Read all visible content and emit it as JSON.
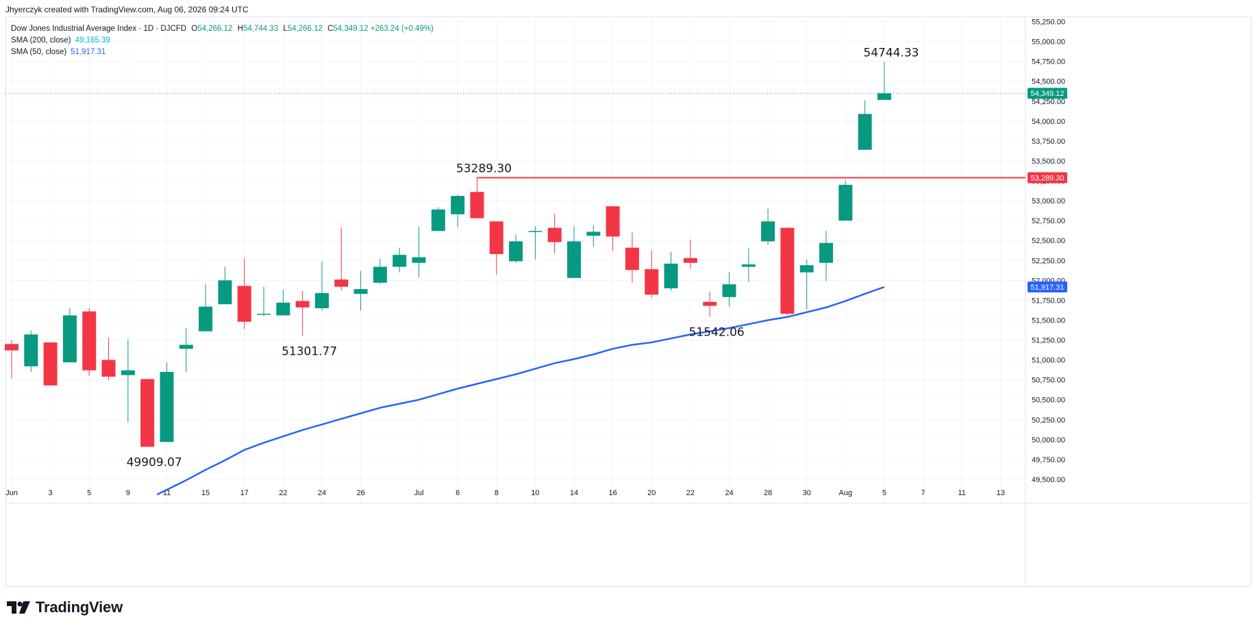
{
  "header": {
    "credit": "Jhyerczyk created with TradingView.com, Aug 06, 2026 09:24 UTC"
  },
  "legend": {
    "title": "Dow Jones Industrial Average Index · 1D · DJCFD",
    "open_key": "O",
    "open": "54,266.12",
    "high_key": "H",
    "high": "54,744.33",
    "low_key": "L",
    "low": "54,266.12",
    "close_key": "C",
    "close": "54,349.12",
    "change": "+263.24 (+0.49%)",
    "sma200_label": "SMA (200, close)",
    "sma200_value": "49,165.39",
    "sma50_label": "SMA (50, close)",
    "sma50_value": "51,917.31"
  },
  "footer": {
    "brand": "TradingView"
  },
  "colors": {
    "up": "#089981",
    "down": "#f23645",
    "sma50": "#2962ff",
    "resistance": "#f23645",
    "grid": "#f0f3fa",
    "axis_text": "#131722",
    "current_price_dotted": "#089981"
  },
  "chart_data": {
    "type": "candlestick",
    "title": "Dow Jones Industrial Average Index · 1D · DJCFD",
    "ylim": [
      49400,
      55350
    ],
    "y_ticks": [
      49500,
      49750,
      50000,
      50250,
      50500,
      50750,
      51000,
      51250,
      51500,
      51750,
      52000,
      52250,
      52500,
      52750,
      53000,
      53250,
      53500,
      53750,
      54000,
      54250,
      54500,
      54750,
      55000,
      55250
    ],
    "y_tick_labels": [
      "49,500.00",
      "49,750.00",
      "50,000.00",
      "50,250.00",
      "50,500.00",
      "50,750.00",
      "51,000.00",
      "51,250.00",
      "51,500.00",
      "51,750.00",
      "52,000.00",
      "52,250.00",
      "52,500.00",
      "52,750.00",
      "53,000.00",
      "53,250.00",
      "53,500.00",
      "53,750.00",
      "54,000.00",
      "54,250.00",
      "54,500.00",
      "54,750.00",
      "55,000.00",
      "55,250.00"
    ],
    "x_ticks": [
      {
        "i": 0,
        "label": "Jun"
      },
      {
        "i": 2,
        "label": "3"
      },
      {
        "i": 4,
        "label": "5"
      },
      {
        "i": 6,
        "label": "9"
      },
      {
        "i": 8,
        "label": "11"
      },
      {
        "i": 10,
        "label": "15"
      },
      {
        "i": 12,
        "label": "17"
      },
      {
        "i": 14,
        "label": "22"
      },
      {
        "i": 16,
        "label": "24"
      },
      {
        "i": 18,
        "label": "26"
      },
      {
        "i": 21,
        "label": "Jul"
      },
      {
        "i": 23,
        "label": "6"
      },
      {
        "i": 25,
        "label": "8"
      },
      {
        "i": 27,
        "label": "10"
      },
      {
        "i": 29,
        "label": "14"
      },
      {
        "i": 31,
        "label": "16"
      },
      {
        "i": 33,
        "label": "20"
      },
      {
        "i": 35,
        "label": "22"
      },
      {
        "i": 37,
        "label": "24"
      },
      {
        "i": 39,
        "label": "28"
      },
      {
        "i": 41,
        "label": "30"
      },
      {
        "i": 43,
        "label": "Aug"
      },
      {
        "i": 45,
        "label": "5"
      },
      {
        "i": 47,
        "label": "7"
      },
      {
        "i": 49,
        "label": "11"
      },
      {
        "i": 51,
        "label": "13"
      }
    ],
    "candles": [
      {
        "i": 0,
        "o": 51200,
        "h": 51250,
        "l": 50770,
        "c": 51120
      },
      {
        "i": 1,
        "o": 50920,
        "h": 51370,
        "l": 50850,
        "c": 51320
      },
      {
        "i": 2,
        "o": 51220,
        "h": 51220,
        "l": 50680,
        "c": 50680
      },
      {
        "i": 3,
        "o": 50970,
        "h": 51650,
        "l": 50970,
        "c": 51560
      },
      {
        "i": 4,
        "o": 51610,
        "h": 51650,
        "l": 50800,
        "c": 50870
      },
      {
        "i": 5,
        "o": 51000,
        "h": 51280,
        "l": 50750,
        "c": 50790
      },
      {
        "i": 6,
        "o": 50810,
        "h": 51260,
        "l": 50220,
        "c": 50870
      },
      {
        "i": 7,
        "o": 50760,
        "h": 50760,
        "l": 49909.07,
        "c": 49909.07
      },
      {
        "i": 8,
        "o": 49970,
        "h": 50970,
        "l": 49970,
        "c": 50850
      },
      {
        "i": 9,
        "o": 51140,
        "h": 51400,
        "l": 50850,
        "c": 51190
      },
      {
        "i": 10,
        "o": 51360,
        "h": 51950,
        "l": 51360,
        "c": 51670
      },
      {
        "i": 11,
        "o": 51700,
        "h": 52170,
        "l": 51700,
        "c": 52000
      },
      {
        "i": 12,
        "o": 51930,
        "h": 52280,
        "l": 51390,
        "c": 51480
      },
      {
        "i": 13,
        "o": 51570,
        "h": 51920,
        "l": 51550,
        "c": 51580
      },
      {
        "i": 14,
        "o": 51560,
        "h": 51880,
        "l": 51560,
        "c": 51720
      },
      {
        "i": 15,
        "o": 51740,
        "h": 51870,
        "l": 51301.77,
        "c": 51660
      },
      {
        "i": 16,
        "o": 51650,
        "h": 52240,
        "l": 51620,
        "c": 51840
      },
      {
        "i": 17,
        "o": 52010,
        "h": 52660,
        "l": 51870,
        "c": 51920
      },
      {
        "i": 18,
        "o": 51830,
        "h": 52120,
        "l": 51620,
        "c": 51890
      },
      {
        "i": 19,
        "o": 51970,
        "h": 52270,
        "l": 51950,
        "c": 52170
      },
      {
        "i": 20,
        "o": 52170,
        "h": 52410,
        "l": 52100,
        "c": 52320
      },
      {
        "i": 21,
        "o": 52220,
        "h": 52670,
        "l": 52040,
        "c": 52290
      },
      {
        "i": 22,
        "o": 52620,
        "h": 52920,
        "l": 52620,
        "c": 52890
      },
      {
        "i": 23,
        "o": 52830,
        "h": 53080,
        "l": 52670,
        "c": 53060
      },
      {
        "i": 24,
        "o": 53110,
        "h": 53289.3,
        "l": 52790,
        "c": 52780
      },
      {
        "i": 25,
        "o": 52740,
        "h": 52740,
        "l": 52070,
        "c": 52330
      },
      {
        "i": 26,
        "o": 52240,
        "h": 52570,
        "l": 52220,
        "c": 52490
      },
      {
        "i": 27,
        "o": 52610,
        "h": 52680,
        "l": 52260,
        "c": 52620
      },
      {
        "i": 28,
        "o": 52660,
        "h": 52840,
        "l": 52340,
        "c": 52480
      },
      {
        "i": 29,
        "o": 52030,
        "h": 52680,
        "l": 52030,
        "c": 52490
      },
      {
        "i": 30,
        "o": 52560,
        "h": 52690,
        "l": 52420,
        "c": 52610
      },
      {
        "i": 31,
        "o": 52930,
        "h": 52930,
        "l": 52370,
        "c": 52550
      },
      {
        "i": 32,
        "o": 52410,
        "h": 52600,
        "l": 51970,
        "c": 52130
      },
      {
        "i": 33,
        "o": 52140,
        "h": 52380,
        "l": 51780,
        "c": 51820
      },
      {
        "i": 34,
        "o": 51900,
        "h": 52360,
        "l": 51870,
        "c": 52210
      },
      {
        "i": 35,
        "o": 52280,
        "h": 52510,
        "l": 52150,
        "c": 52220
      },
      {
        "i": 36,
        "o": 51730,
        "h": 51860,
        "l": 51542.06,
        "c": 51680
      },
      {
        "i": 37,
        "o": 51790,
        "h": 52100,
        "l": 51670,
        "c": 51950
      },
      {
        "i": 38,
        "o": 52170,
        "h": 52400,
        "l": 51980,
        "c": 52200
      },
      {
        "i": 39,
        "o": 52490,
        "h": 52900,
        "l": 52450,
        "c": 52740
      },
      {
        "i": 40,
        "o": 52660,
        "h": 52660,
        "l": 51560,
        "c": 51580
      },
      {
        "i": 41,
        "o": 52100,
        "h": 52260,
        "l": 51630,
        "c": 52190
      },
      {
        "i": 42,
        "o": 52220,
        "h": 52620,
        "l": 51990,
        "c": 52470
      },
      {
        "i": 43,
        "o": 52750,
        "h": 53250,
        "l": 52750,
        "c": 53200
      },
      {
        "i": 44,
        "o": 53640,
        "h": 54260,
        "l": 53640,
        "c": 54090
      },
      {
        "i": 45,
        "o": 54266.12,
        "h": 54744.33,
        "l": 54266.12,
        "c": 54349.12
      }
    ],
    "sma50": {
      "name": "SMA (50, close)",
      "points": [
        {
          "i": 7.5,
          "v": 49310
        },
        {
          "i": 9,
          "v": 49490
        },
        {
          "i": 10,
          "v": 49620
        },
        {
          "i": 11,
          "v": 49740
        },
        {
          "i": 12,
          "v": 49870
        },
        {
          "i": 13,
          "v": 49960
        },
        {
          "i": 14,
          "v": 50040
        },
        {
          "i": 15,
          "v": 50120
        },
        {
          "i": 16,
          "v": 50190
        },
        {
          "i": 17,
          "v": 50260
        },
        {
          "i": 18,
          "v": 50330
        },
        {
          "i": 19,
          "v": 50400
        },
        {
          "i": 20,
          "v": 50450
        },
        {
          "i": 21,
          "v": 50500
        },
        {
          "i": 22,
          "v": 50570
        },
        {
          "i": 23,
          "v": 50640
        },
        {
          "i": 24,
          "v": 50700
        },
        {
          "i": 25,
          "v": 50760
        },
        {
          "i": 26,
          "v": 50820
        },
        {
          "i": 27,
          "v": 50890
        },
        {
          "i": 28,
          "v": 50960
        },
        {
          "i": 29,
          "v": 51010
        },
        {
          "i": 30,
          "v": 51070
        },
        {
          "i": 31,
          "v": 51140
        },
        {
          "i": 32,
          "v": 51190
        },
        {
          "i": 33,
          "v": 51220
        },
        {
          "i": 34,
          "v": 51270
        },
        {
          "i": 35,
          "v": 51320
        },
        {
          "i": 36,
          "v": 51360
        },
        {
          "i": 37,
          "v": 51400
        },
        {
          "i": 38,
          "v": 51450
        },
        {
          "i": 39,
          "v": 51500
        },
        {
          "i": 40,
          "v": 51540
        },
        {
          "i": 41,
          "v": 51600
        },
        {
          "i": 42,
          "v": 51660
        },
        {
          "i": 43,
          "v": 51740
        },
        {
          "i": 44,
          "v": 51830
        },
        {
          "i": 45,
          "v": 51917.31
        }
      ]
    },
    "resistance": {
      "value": 53289.3,
      "from_i": 24,
      "label": "53,289.30"
    },
    "current_price": {
      "value": 54349.12,
      "label": "54,349.12"
    },
    "sma50_price_label": {
      "value": 51917.31,
      "label": "51,917.31"
    },
    "annotations": [
      {
        "i": 45,
        "v": 54744.33,
        "text": "54744.33",
        "pos": "above"
      },
      {
        "i": 24,
        "v": 53289.3,
        "text": "53289.30",
        "pos": "above"
      },
      {
        "i": 15,
        "v": 51301.77,
        "text": "51301.77",
        "pos": "below"
      },
      {
        "i": 7,
        "v": 49909.07,
        "text": "49909.07",
        "pos": "below"
      },
      {
        "i": 36,
        "v": 51542.06,
        "text": "51542.06",
        "pos": "below"
      }
    ]
  }
}
